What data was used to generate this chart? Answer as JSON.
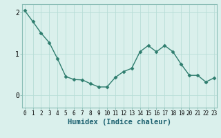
{
  "x": [
    0,
    1,
    2,
    3,
    4,
    5,
    6,
    7,
    8,
    9,
    10,
    11,
    12,
    13,
    14,
    15,
    16,
    17,
    18,
    19,
    20,
    21,
    22,
    23
  ],
  "y": [
    2.05,
    1.78,
    1.5,
    1.27,
    0.88,
    0.45,
    0.38,
    0.37,
    0.28,
    0.2,
    0.2,
    0.43,
    0.57,
    0.65,
    1.05,
    1.2,
    1.05,
    1.2,
    1.05,
    0.75,
    0.48,
    0.48,
    0.32,
    0.42
  ],
  "line_color": "#2e7d6e",
  "marker": "D",
  "marker_size": 2.5,
  "bg_color": "#daf0ec",
  "grid_color": "#b8ddd7",
  "xlabel": "Humidex (Indice chaleur)",
  "xlabel_color": "#1a5f6e",
  "xlabel_fontsize": 7.5,
  "tick_fontsize": 5.5,
  "ytick_fontsize": 7,
  "yticks": [
    0,
    1,
    2
  ],
  "xticks": [
    0,
    1,
    2,
    3,
    4,
    5,
    6,
    7,
    8,
    9,
    10,
    11,
    12,
    13,
    14,
    15,
    16,
    17,
    18,
    19,
    20,
    21,
    22,
    23
  ],
  "xlim": [
    -0.3,
    23.3
  ],
  "ylim": [
    -0.3,
    2.2
  ],
  "linewidth": 1.0
}
